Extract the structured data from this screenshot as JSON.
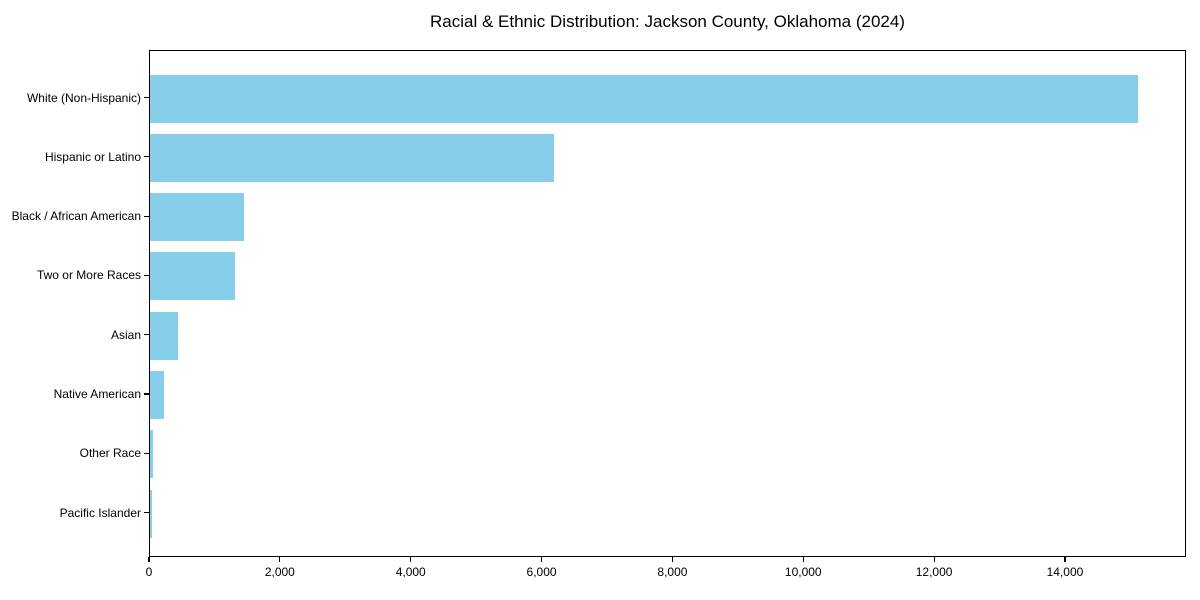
{
  "chart_data": {
    "type": "bar",
    "orientation": "horizontal",
    "title": "Racial & Ethnic Distribution: Jackson County, Oklahoma (2024)",
    "categories": [
      "White (Non-Hispanic)",
      "Hispanic or Latino",
      "Black / African American",
      "Two or More Races",
      "Asian",
      "Native American",
      "Other Race",
      "Pacific Islander"
    ],
    "values": [
      15100,
      6170,
      1435,
      1300,
      430,
      215,
      45,
      38
    ],
    "bar_color": "#87CEEB",
    "axis_color": "#000000",
    "text_color": "#000000",
    "xlabel": "",
    "ylabel": "",
    "xlim": [
      0,
      15850
    ],
    "x_ticks": [
      0,
      2000,
      4000,
      6000,
      8000,
      10000,
      12000,
      14000
    ],
    "x_tick_labels": [
      "0",
      "2,000",
      "4,000",
      "6,000",
      "8,000",
      "10,000",
      "12,000",
      "14,000"
    ],
    "grid": false,
    "legend": false
  }
}
